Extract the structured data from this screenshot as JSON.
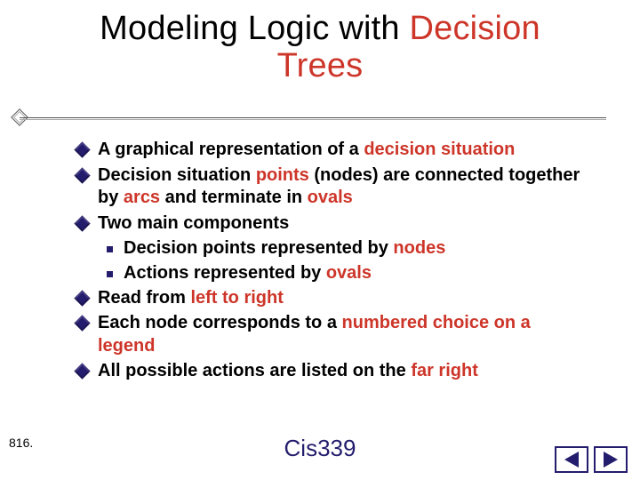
{
  "colors": {
    "accent_red": "#cd3529",
    "accent_navy": "#241d6d",
    "text_black": "#000000",
    "background": "#ffffff"
  },
  "title": {
    "prefix": "Modeling Logic with ",
    "highlight1": "Decision",
    "line2": "Trees"
  },
  "bullets": [
    {
      "type": "main",
      "runs": [
        [
          "A graphical representation of a ",
          false
        ],
        [
          "decision situation",
          true
        ]
      ]
    },
    {
      "type": "main",
      "runs": [
        [
          "Decision situation ",
          false
        ],
        [
          "points",
          true
        ],
        [
          " (nodes) are connected together by ",
          false
        ],
        [
          "arcs",
          true
        ],
        [
          " and terminate in ",
          false
        ],
        [
          "ovals",
          true
        ]
      ]
    },
    {
      "type": "main",
      "runs": [
        [
          "Two main components",
          false
        ]
      ]
    },
    {
      "type": "sub",
      "runs": [
        [
          "Decision points represented by ",
          false
        ],
        [
          "nodes",
          true
        ]
      ]
    },
    {
      "type": "sub",
      "runs": [
        [
          "Actions represented by ",
          false
        ],
        [
          "ovals",
          true
        ]
      ]
    },
    {
      "type": "main",
      "runs": [
        [
          "Read from ",
          false
        ],
        [
          "left to right",
          true
        ]
      ]
    },
    {
      "type": "main",
      "runs": [
        [
          "Each node corresponds to a ",
          false
        ],
        [
          "numbered choice on a legend",
          true
        ]
      ]
    },
    {
      "type": "main",
      "runs": [
        [
          "All possible actions are listed on the ",
          false
        ],
        [
          "far right",
          true
        ]
      ]
    }
  ],
  "slide_number": "816.",
  "footer": "Cis339",
  "typography": {
    "title_fontsize": 38,
    "body_fontsize": 20,
    "footer_fontsize": 26,
    "body_weight": 700
  }
}
